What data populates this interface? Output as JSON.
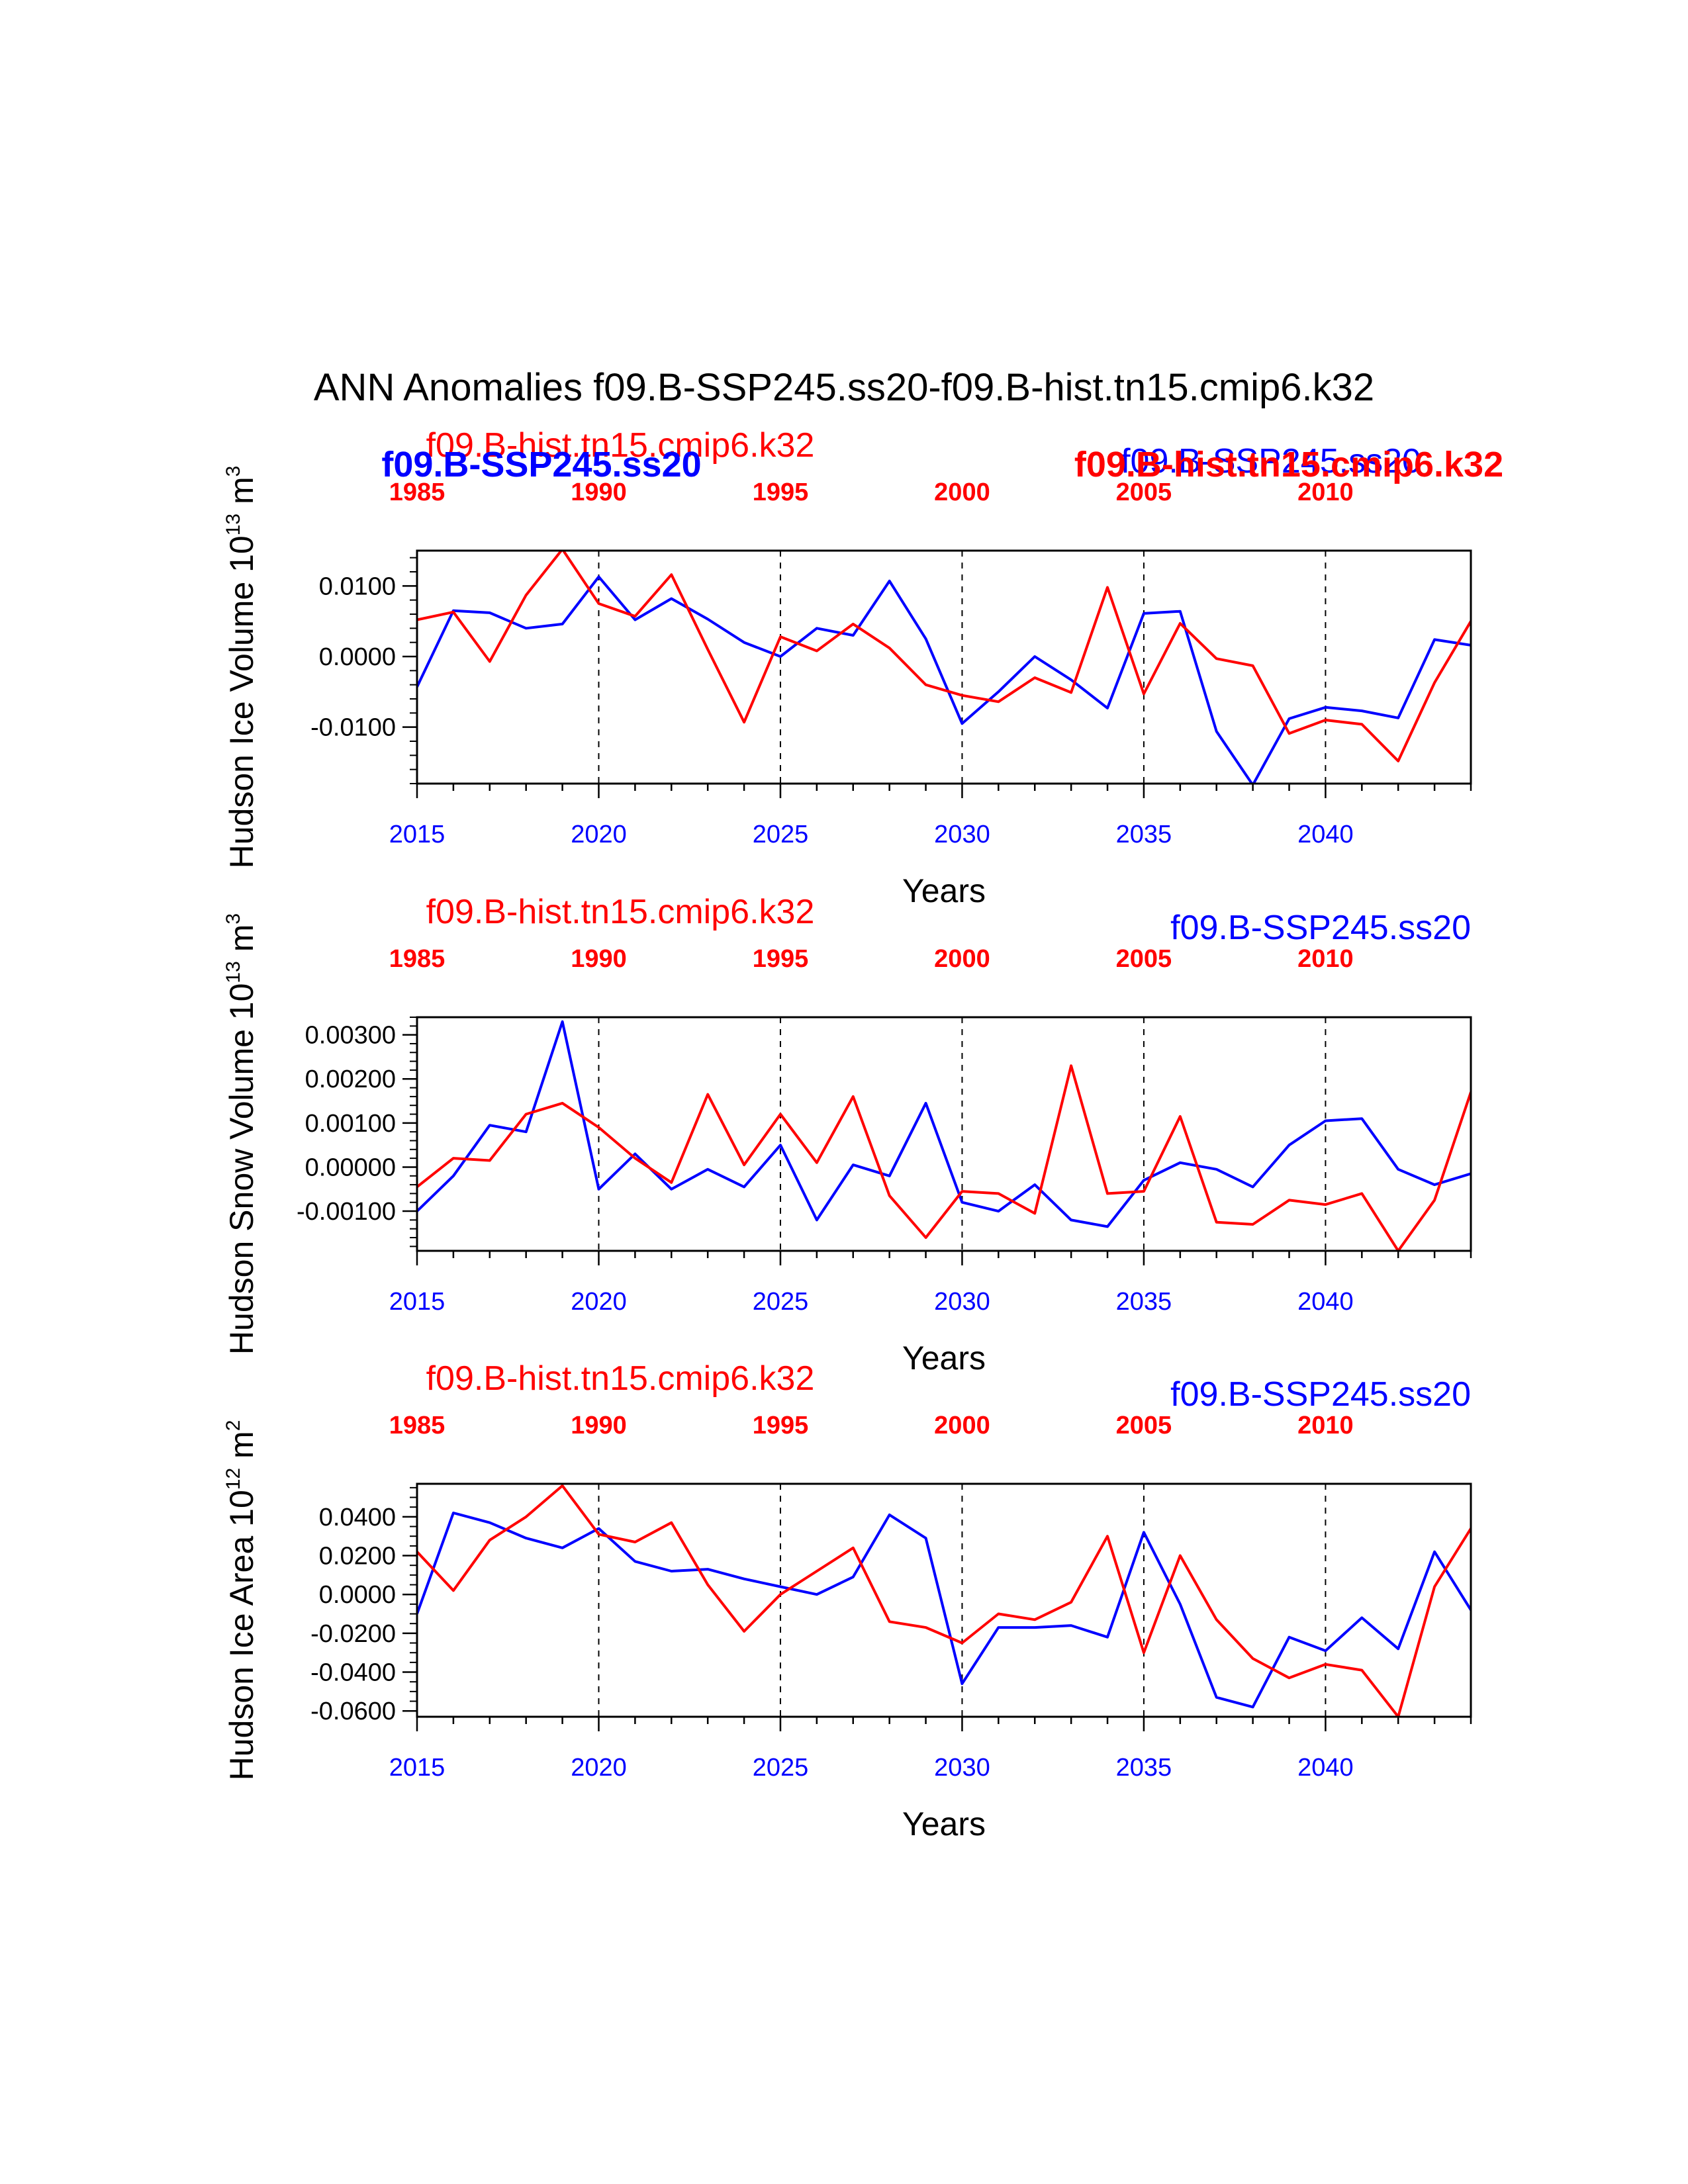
{
  "title": "ANN Anomalies f09.B-SSP245.ss20-f09.B-hist.tn15.cmip6.k32",
  "colors": {
    "ssp": "#0000ff",
    "hist": "#ff0000",
    "axis": "#000000"
  },
  "chart_data": [
    {
      "type": "line",
      "ylabel": {
        "base": "Hudson Ice Volume 10",
        "exp": "13",
        "unit": " m",
        "unit_exp": "3"
      },
      "xlabel": "Years",
      "ylim": [
        -0.018,
        0.015
      ],
      "yticks": [
        {
          "v": 0.01,
          "label": "0.0100"
        },
        {
          "v": 0.0,
          "label": "0.0000"
        },
        {
          "v": -0.01,
          "label": "-0.0100"
        }
      ],
      "yminor": 0.002,
      "bottom_axis": {
        "xlim": [
          2015,
          2044
        ],
        "ticks": [
          "2015",
          "2020",
          "2025",
          "2030",
          "2035",
          "2040"
        ]
      },
      "top_axis": {
        "xlim": [
          1985,
          2014
        ],
        "ticks": [
          "1985",
          "1990",
          "1995",
          "2000",
          "2005",
          "2010"
        ]
      },
      "grid": "dashed vertical at bottom-axis major ticks",
      "legend": {
        "style": "overlapping",
        "hist_left": "f09.B-hist.tn15.cmip6.k32",
        "ssp_left": "f09.B-SSP245.ss20",
        "ssp_right": "f09.B-SSP245.ss20",
        "hist_right": "f09.B-hist.tn15.cmip6.k32"
      },
      "series": [
        {
          "name": "f09.B-SSP245.ss20",
          "color": "#0000ff",
          "axis": "bottom",
          "x": [
            2015,
            2016,
            2017,
            2018,
            2019,
            2020,
            2021,
            2022,
            2023,
            2024,
            2025,
            2026,
            2027,
            2028,
            2029,
            2030,
            2031,
            2032,
            2033,
            2034,
            2035,
            2036,
            2037,
            2038,
            2039,
            2040,
            2041,
            2042,
            2043,
            2044
          ],
          "values": [
            -0.0043,
            0.0065,
            0.0062,
            0.004,
            0.0046,
            0.0113,
            0.0052,
            0.0082,
            0.0053,
            0.002,
            0.0,
            0.004,
            0.003,
            0.0107,
            0.0025,
            -0.0095,
            -0.005,
            0.0,
            -0.0033,
            -0.0073,
            0.0061,
            0.0064,
            -0.0106,
            -0.0182,
            -0.0088,
            -0.0072,
            -0.0077,
            -0.0087,
            0.0024,
            0.0016
          ]
        },
        {
          "name": "f09.B-hist.tn15.cmip6.k32",
          "color": "#ff0000",
          "axis": "top",
          "x": [
            1985,
            1986,
            1987,
            1988,
            1989,
            1990,
            1991,
            1992,
            1993,
            1994,
            1995,
            1996,
            1997,
            1998,
            1999,
            2000,
            2001,
            2002,
            2003,
            2004,
            2005,
            2006,
            2007,
            2008,
            2009,
            2010,
            2011,
            2012,
            2013,
            2014
          ],
          "values": [
            0.0052,
            0.0063,
            -0.0007,
            0.0087,
            0.0152,
            0.0075,
            0.0057,
            0.0116,
            0.001,
            -0.0093,
            0.0028,
            0.0008,
            0.0046,
            0.0012,
            -0.004,
            -0.0055,
            -0.0064,
            -0.003,
            -0.0051,
            0.0098,
            -0.0053,
            0.0047,
            -0.0003,
            -0.0013,
            -0.0109,
            -0.009,
            -0.0096,
            -0.0148,
            -0.0037,
            0.005
          ]
        }
      ]
    },
    {
      "type": "line",
      "ylabel": {
        "base": "Hudson Snow Volume 10",
        "exp": "13",
        "unit": " m",
        "unit_exp": "3"
      },
      "xlabel": "Years",
      "ylim": [
        -0.0019,
        0.0034
      ],
      "yticks": [
        {
          "v": 0.003,
          "label": "0.00300"
        },
        {
          "v": 0.002,
          "label": "0.00200"
        },
        {
          "v": 0.001,
          "label": "0.00100"
        },
        {
          "v": 0.0,
          "label": "0.00000"
        },
        {
          "v": -0.001,
          "label": "-0.00100"
        }
      ],
      "yminor": 0.0002,
      "bottom_axis": {
        "xlim": [
          2015,
          2044
        ],
        "ticks": [
          "2015",
          "2020",
          "2025",
          "2030",
          "2035",
          "2040"
        ]
      },
      "top_axis": {
        "xlim": [
          1985,
          2014
        ],
        "ticks": [
          "1985",
          "1990",
          "1995",
          "2000",
          "2005",
          "2010"
        ]
      },
      "grid": "dashed vertical at bottom-axis major ticks",
      "legend": {
        "style": "separate",
        "hist_left": "f09.B-hist.tn15.cmip6.k32",
        "ssp_right": "f09.B-SSP245.ss20"
      },
      "series": [
        {
          "name": "f09.B-SSP245.ss20",
          "color": "#0000ff",
          "axis": "bottom",
          "x": [
            2015,
            2016,
            2017,
            2018,
            2019,
            2020,
            2021,
            2022,
            2023,
            2024,
            2025,
            2026,
            2027,
            2028,
            2029,
            2030,
            2031,
            2032,
            2033,
            2034,
            2035,
            2036,
            2037,
            2038,
            2039,
            2040,
            2041,
            2042,
            2043,
            2044
          ],
          "values": [
            -0.001,
            -0.0002,
            0.00095,
            0.0008,
            0.0033,
            -0.0005,
            0.0003,
            -0.0005,
            -5e-05,
            -0.00045,
            0.0005,
            -0.0012,
            5e-05,
            -0.0002,
            0.00145,
            -0.0008,
            -0.001,
            -0.0004,
            -0.0012,
            -0.00135,
            -0.0003,
            0.0001,
            -5e-05,
            -0.00045,
            0.0005,
            0.00105,
            0.0011,
            -5e-05,
            -0.0004,
            -0.00015
          ]
        },
        {
          "name": "f09.B-hist.tn15.cmip6.k32",
          "color": "#ff0000",
          "axis": "top",
          "x": [
            1985,
            1986,
            1987,
            1988,
            1989,
            1990,
            1991,
            1992,
            1993,
            1994,
            1995,
            1996,
            1997,
            1998,
            1999,
            2000,
            2001,
            2002,
            2003,
            2004,
            2005,
            2006,
            2007,
            2008,
            2009,
            2010,
            2011,
            2012,
            2013,
            2014
          ],
          "values": [
            -0.00045,
            0.0002,
            0.00015,
            0.0012,
            0.00145,
            0.0009,
            0.0002,
            -0.00035,
            0.00165,
            5e-05,
            0.0012,
            0.0001,
            0.0016,
            -0.00065,
            -0.0016,
            -0.00055,
            -0.0006,
            -0.00105,
            0.0023,
            -0.0006,
            -0.00055,
            0.00115,
            -0.00125,
            -0.0013,
            -0.00075,
            -0.00085,
            -0.0006,
            -0.0019,
            -0.00075,
            0.0017
          ]
        }
      ]
    },
    {
      "type": "line",
      "ylabel": {
        "base": "Hudson Ice Area 10",
        "exp": "12",
        "unit": " m",
        "unit_exp": "2"
      },
      "xlabel": "Years",
      "ylim": [
        -0.063,
        0.057
      ],
      "yticks": [
        {
          "v": 0.04,
          "label": "0.0400"
        },
        {
          "v": 0.02,
          "label": "0.0200"
        },
        {
          "v": 0.0,
          "label": "0.0000"
        },
        {
          "v": -0.02,
          "label": "-0.0200"
        },
        {
          "v": -0.04,
          "label": "-0.0400"
        },
        {
          "v": -0.06,
          "label": "-0.0600"
        }
      ],
      "yminor": 0.005,
      "bottom_axis": {
        "xlim": [
          2015,
          2044
        ],
        "ticks": [
          "2015",
          "2020",
          "2025",
          "2030",
          "2035",
          "2040"
        ]
      },
      "top_axis": {
        "xlim": [
          1985,
          2014
        ],
        "ticks": [
          "1985",
          "1990",
          "1995",
          "2000",
          "2005",
          "2010"
        ]
      },
      "grid": "dashed vertical at bottom-axis major ticks",
      "legend": {
        "style": "separate",
        "hist_left": "f09.B-hist.tn15.cmip6.k32",
        "ssp_right": "f09.B-SSP245.ss20"
      },
      "series": [
        {
          "name": "f09.B-SSP245.ss20",
          "color": "#0000ff",
          "axis": "bottom",
          "x": [
            2015,
            2016,
            2017,
            2018,
            2019,
            2020,
            2021,
            2022,
            2023,
            2024,
            2025,
            2026,
            2027,
            2028,
            2029,
            2030,
            2031,
            2032,
            2033,
            2034,
            2035,
            2036,
            2037,
            2038,
            2039,
            2040,
            2041,
            2042,
            2043,
            2044
          ],
          "values": [
            -0.01,
            0.042,
            0.037,
            0.029,
            0.024,
            0.034,
            0.017,
            0.012,
            0.013,
            0.008,
            0.004,
            0.0,
            0.009,
            0.041,
            0.029,
            -0.046,
            -0.017,
            -0.017,
            -0.016,
            -0.022,
            0.032,
            -0.005,
            -0.053,
            -0.058,
            -0.022,
            -0.029,
            -0.012,
            -0.028,
            0.022,
            -0.008
          ]
        },
        {
          "name": "f09.B-hist.tn15.cmip6.k32",
          "color": "#ff0000",
          "axis": "top",
          "x": [
            1985,
            1986,
            1987,
            1988,
            1989,
            1990,
            1991,
            1992,
            1993,
            1994,
            1995,
            1996,
            1997,
            1998,
            1999,
            2000,
            2001,
            2002,
            2003,
            2004,
            2005,
            2006,
            2007,
            2008,
            2009,
            2010,
            2011,
            2012,
            2013,
            2014
          ],
          "values": [
            0.022,
            0.002,
            0.028,
            0.04,
            0.056,
            0.031,
            0.027,
            0.037,
            0.005,
            -0.019,
            0.0,
            0.012,
            0.024,
            -0.014,
            -0.017,
            -0.025,
            -0.01,
            -0.013,
            -0.004,
            0.03,
            -0.03,
            0.02,
            -0.013,
            -0.033,
            -0.043,
            -0.036,
            -0.039,
            -0.063,
            0.004,
            0.034
          ]
        }
      ]
    }
  ]
}
